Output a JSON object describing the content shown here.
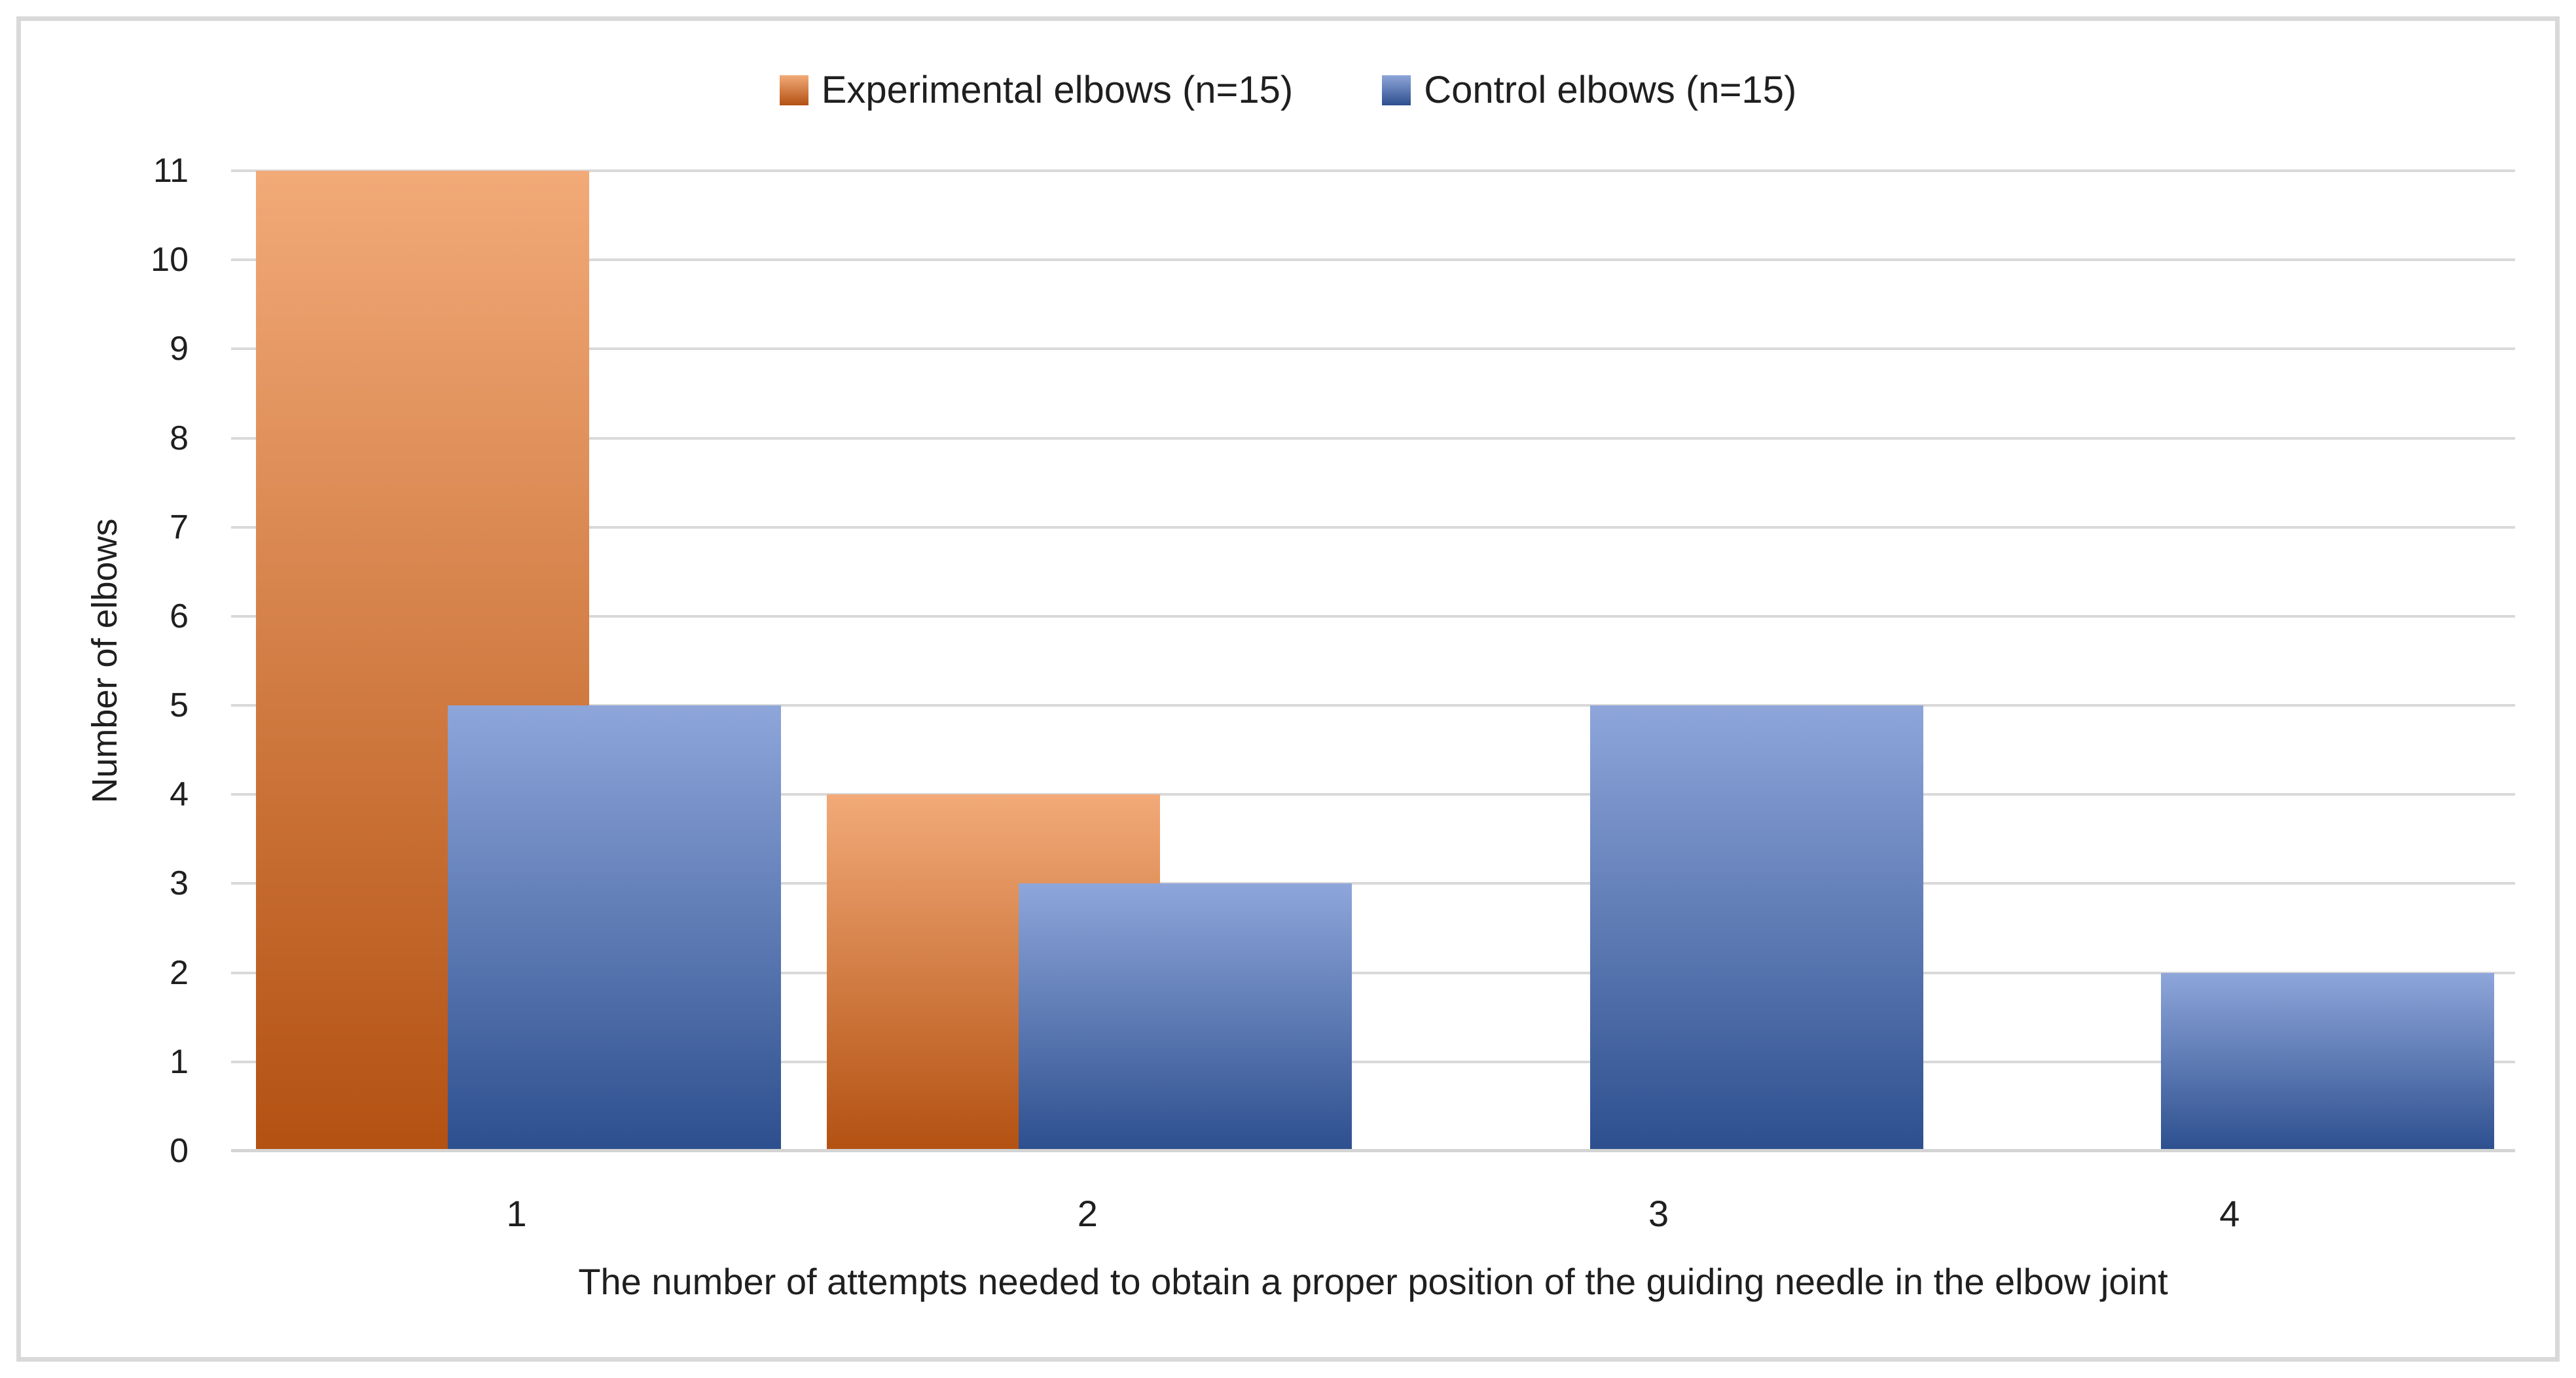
{
  "chart_data": {
    "type": "bar",
    "title": "",
    "categories": [
      "1",
      "2",
      "3",
      "4"
    ],
    "series": [
      {
        "name": "Experimental elbows (n=15)",
        "values": [
          11,
          4,
          0,
          0
        ],
        "color_top": "#f2aa78",
        "color_bottom": "#b35112"
      },
      {
        "name": "Control elbows (n=15)",
        "values": [
          5,
          3,
          5,
          2
        ],
        "color_top": "#8ea6da",
        "color_bottom": "#2d4f8e"
      }
    ],
    "xlabel": "The number of attempts needed to obtain a proper position of the guiding needle in the elbow joint",
    "ylabel": "Number of elbows",
    "ylim": [
      0,
      11
    ],
    "yticks": [
      0,
      1,
      2,
      3,
      4,
      5,
      6,
      7,
      8,
      9,
      10,
      11
    ],
    "grid": true,
    "legend_position": "top",
    "gridline_color": "#d9d9d9",
    "axis_line_color": "#d4d4d4",
    "text_color": "#1f1f1f",
    "frame_border_color": "#d9d9d9",
    "background": "#ffffff"
  }
}
